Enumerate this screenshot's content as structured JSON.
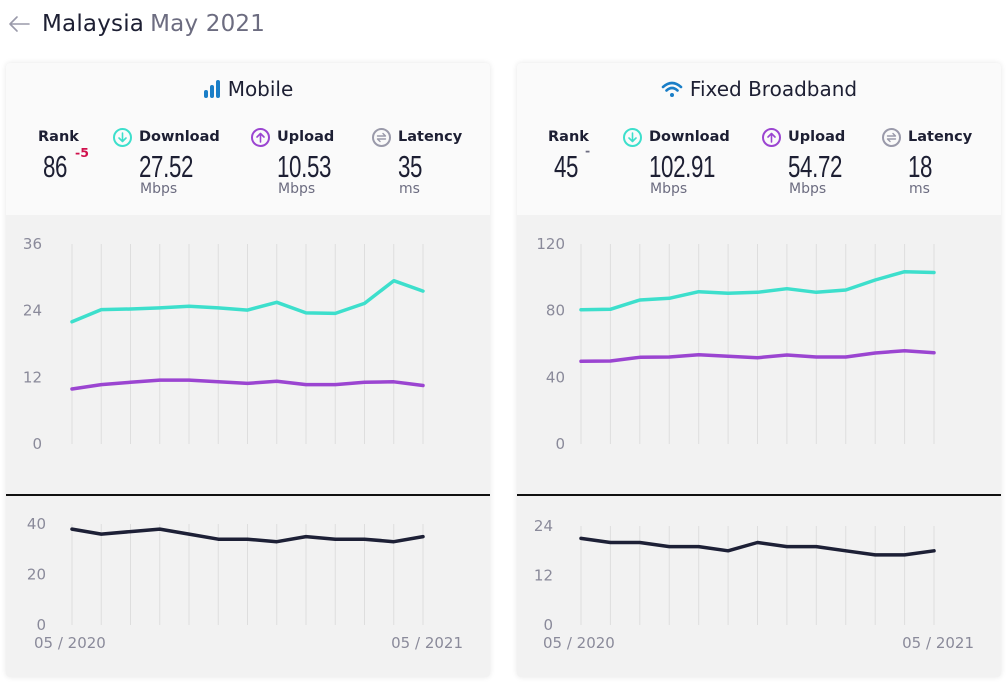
{
  "header": {
    "back_icon": "arrow-left-icon",
    "country": "Malaysia",
    "date": "May 2021"
  },
  "colors": {
    "download": "#3ddfcc",
    "upload": "#9b45d1",
    "latency": "#1d2036",
    "rank_change_negative": "#d0104c",
    "title_icon": "#1a7ec7"
  },
  "cards": [
    {
      "key": "mobile",
      "title": "Mobile",
      "title_icon": "signal-bars-icon",
      "rank": {
        "label": "Rank",
        "value": "86",
        "change": "-5"
      },
      "download": {
        "label": "Download",
        "value": "27.52",
        "unit": "Mbps",
        "icon": "download-arrow-icon"
      },
      "upload": {
        "label": "Upload",
        "value": "10.53",
        "unit": "Mbps",
        "icon": "upload-arrow-icon"
      },
      "latency": {
        "label": "Latency",
        "value": "35",
        "unit": "ms",
        "icon": "latency-icon"
      }
    },
    {
      "key": "fixed",
      "title": "Fixed Broadband",
      "title_icon": "wifi-icon",
      "rank": {
        "label": "Rank",
        "value": "45",
        "change": "-"
      },
      "download": {
        "label": "Download",
        "value": "102.91",
        "unit": "Mbps",
        "icon": "download-arrow-icon"
      },
      "upload": {
        "label": "Upload",
        "value": "54.72",
        "unit": "Mbps",
        "icon": "upload-arrow-icon"
      },
      "latency": {
        "label": "Latency",
        "value": "18",
        "unit": "ms",
        "icon": "latency-icon"
      }
    }
  ],
  "chart_data": [
    {
      "id": "mobile-speed",
      "type": "line",
      "title": "Mobile speeds",
      "x": [
        "05/2020",
        "06/2020",
        "07/2020",
        "08/2020",
        "09/2020",
        "10/2020",
        "11/2020",
        "12/2020",
        "01/2021",
        "02/2021",
        "03/2021",
        "04/2021",
        "05/2021"
      ],
      "ylim": [
        0,
        36
      ],
      "yticks": [
        0,
        12,
        24,
        36
      ],
      "grid": "vertical",
      "series": [
        {
          "name": "Download",
          "color": "#3ddfcc",
          "values": [
            22.0,
            24.2,
            24.3,
            24.5,
            24.8,
            24.5,
            24.1,
            25.5,
            23.6,
            23.5,
            25.3,
            29.4,
            27.52
          ]
        },
        {
          "name": "Upload",
          "color": "#9b45d1",
          "values": [
            9.9,
            10.7,
            11.1,
            11.5,
            11.5,
            11.2,
            10.9,
            11.3,
            10.7,
            10.7,
            11.1,
            11.2,
            10.53
          ]
        }
      ]
    },
    {
      "id": "mobile-latency",
      "type": "line",
      "title": "Mobile latency",
      "x": [
        "05/2020",
        "06/2020",
        "07/2020",
        "08/2020",
        "09/2020",
        "10/2020",
        "11/2020",
        "12/2020",
        "01/2021",
        "02/2021",
        "03/2021",
        "04/2021",
        "05/2021"
      ],
      "xtick_labels": [
        "05 / 2020",
        "05 / 2021"
      ],
      "ylim": [
        0,
        40
      ],
      "yticks": [
        0,
        20,
        40
      ],
      "grid": "vertical",
      "series": [
        {
          "name": "Latency",
          "color": "#1d2036",
          "values": [
            38,
            36,
            37,
            38,
            36,
            34,
            34,
            33,
            35,
            34,
            34,
            33,
            35
          ]
        }
      ]
    },
    {
      "id": "fixed-speed",
      "type": "line",
      "title": "Fixed Broadband speeds",
      "x": [
        "05/2020",
        "06/2020",
        "07/2020",
        "08/2020",
        "09/2020",
        "10/2020",
        "11/2020",
        "12/2020",
        "01/2021",
        "02/2021",
        "03/2021",
        "04/2021",
        "05/2021"
      ],
      "ylim": [
        0,
        120
      ],
      "yticks": [
        0,
        40,
        80,
        120
      ],
      "grid": "vertical",
      "series": [
        {
          "name": "Download",
          "color": "#3ddfcc",
          "values": [
            80.6,
            80.8,
            86.4,
            87.4,
            91.4,
            90.4,
            91.0,
            93.2,
            91.0,
            92.4,
            98.4,
            103.4,
            102.91
          ]
        },
        {
          "name": "Upload",
          "color": "#9b45d1",
          "values": [
            49.6,
            49.8,
            52.0,
            52.2,
            53.6,
            52.6,
            51.8,
            53.4,
            52.2,
            52.2,
            54.6,
            56.0,
            54.72
          ]
        }
      ]
    },
    {
      "id": "fixed-latency",
      "type": "line",
      "title": "Fixed Broadband latency",
      "x": [
        "05/2020",
        "06/2020",
        "07/2020",
        "08/2020",
        "09/2020",
        "10/2020",
        "11/2020",
        "12/2020",
        "01/2021",
        "02/2021",
        "03/2021",
        "04/2021",
        "05/2021"
      ],
      "xtick_labels": [
        "05 / 2020",
        "05 / 2021"
      ],
      "ylim": [
        0,
        24
      ],
      "yticks": [
        0,
        12,
        24
      ],
      "grid": "vertical",
      "series": [
        {
          "name": "Latency",
          "color": "#1d2036",
          "values": [
            21,
            20,
            20,
            19,
            19,
            18,
            20,
            19,
            19,
            18,
            17,
            17,
            18
          ]
        }
      ]
    }
  ]
}
